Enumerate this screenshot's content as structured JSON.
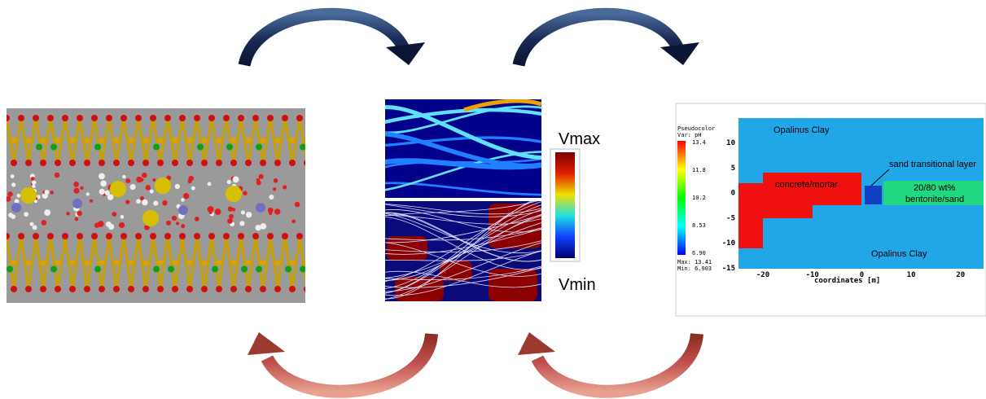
{
  "center": {
    "vmax": "Vmax",
    "vmin": "Vmin"
  },
  "simulation": {
    "legend": {
      "title": "Pseudocolor",
      "variable": "Var: pH",
      "ticks": [
        "13.4",
        "11.8",
        "10.2",
        "8.53",
        "6.90"
      ],
      "max": "Max: 13.41",
      "min": "Min: 6.903"
    },
    "y_ticks": [
      "10",
      "5",
      "0",
      "-5",
      "-10",
      "-15"
    ],
    "x_ticks": [
      "-20",
      "-10",
      "0",
      "10",
      "20"
    ],
    "x_label": "coordinates [m]",
    "labels": {
      "clay_top": "Opalinus Clay",
      "clay_bottom": "Opalinus Clay",
      "concrete": "concrete/mortar",
      "sand": "sand transitional layer",
      "bentonite_1": "20/80 wt%",
      "bentonite_2": "bentonite/sand"
    }
  }
}
